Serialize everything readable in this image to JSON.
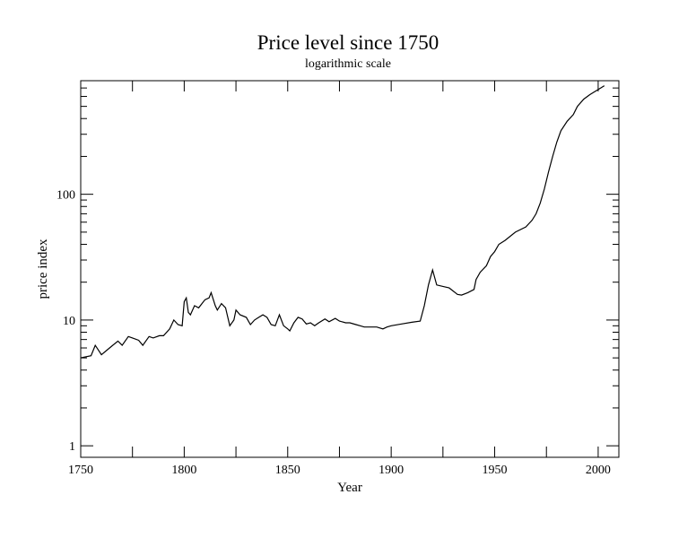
{
  "chart_data": {
    "type": "line",
    "title": "Price level since 1750",
    "subtitle": "logarithmic scale",
    "xlabel": "Year",
    "ylabel": "price index",
    "xlim": [
      1750,
      2010
    ],
    "ylim": [
      0.81,
      800
    ],
    "yscale": "log",
    "xticks": [
      1750,
      1800,
      1850,
      1900,
      1950,
      2000
    ],
    "xtick_labels": [
      "1750",
      "1800",
      "1850",
      "1900",
      "1950",
      "2000"
    ],
    "yticks": [
      1,
      10,
      100
    ],
    "ytick_labels": [
      "1",
      "10",
      "100"
    ],
    "grid": false,
    "line_color": "#000000",
    "series": [
      {
        "name": "price index",
        "x": [
          1750,
          1755,
          1757,
          1760,
          1765,
          1768,
          1770,
          1773,
          1775,
          1778,
          1780,
          1783,
          1785,
          1788,
          1790,
          1793,
          1795,
          1797,
          1799,
          1800,
          1801,
          1802,
          1803,
          1805,
          1807,
          1810,
          1812,
          1813,
          1815,
          1816,
          1818,
          1820,
          1822,
          1824,
          1825,
          1827,
          1830,
          1832,
          1834,
          1836,
          1838,
          1840,
          1842,
          1844,
          1846,
          1848,
          1850,
          1851,
          1853,
          1855,
          1857,
          1859,
          1861,
          1863,
          1865,
          1868,
          1870,
          1873,
          1875,
          1878,
          1880,
          1883,
          1885,
          1887,
          1890,
          1893,
          1896,
          1898,
          1900,
          1905,
          1910,
          1914,
          1916,
          1918,
          1920,
          1922,
          1925,
          1928,
          1932,
          1934,
          1937,
          1940,
          1941,
          1943,
          1946,
          1948,
          1950,
          1952,
          1955,
          1960,
          1965,
          1968,
          1970,
          1972,
          1974,
          1976,
          1978,
          1980,
          1982,
          1985,
          1988,
          1990,
          1993,
          1996,
          2000,
          2003
        ],
        "y": [
          5.0,
          5.2,
          6.3,
          5.3,
          6.2,
          6.8,
          6.3,
          7.4,
          7.2,
          6.9,
          6.3,
          7.4,
          7.2,
          7.5,
          7.5,
          8.5,
          10,
          9.2,
          9,
          14,
          15,
          11.5,
          11,
          13,
          12.5,
          14.5,
          15,
          16.5,
          13,
          12,
          13.5,
          12.5,
          9,
          10,
          12,
          11,
          10.5,
          9.2,
          10,
          10.5,
          11,
          10.5,
          9.2,
          9,
          11,
          9,
          8.5,
          8.2,
          9.5,
          10.5,
          10.2,
          9.3,
          9.5,
          9,
          9.5,
          10.2,
          9.7,
          10.3,
          9.8,
          9.5,
          9.5,
          9.2,
          9,
          8.8,
          8.8,
          8.8,
          8.5,
          8.8,
          9,
          9.3,
          9.6,
          9.8,
          13,
          19,
          25,
          19,
          18.5,
          18,
          16,
          15.8,
          16.5,
          17.5,
          21,
          24,
          27,
          32,
          35,
          40,
          43,
          50,
          55,
          62,
          70,
          85,
          110,
          150,
          200,
          260,
          320,
          380,
          430,
          500,
          570,
          620,
          680,
          730
        ]
      }
    ]
  }
}
